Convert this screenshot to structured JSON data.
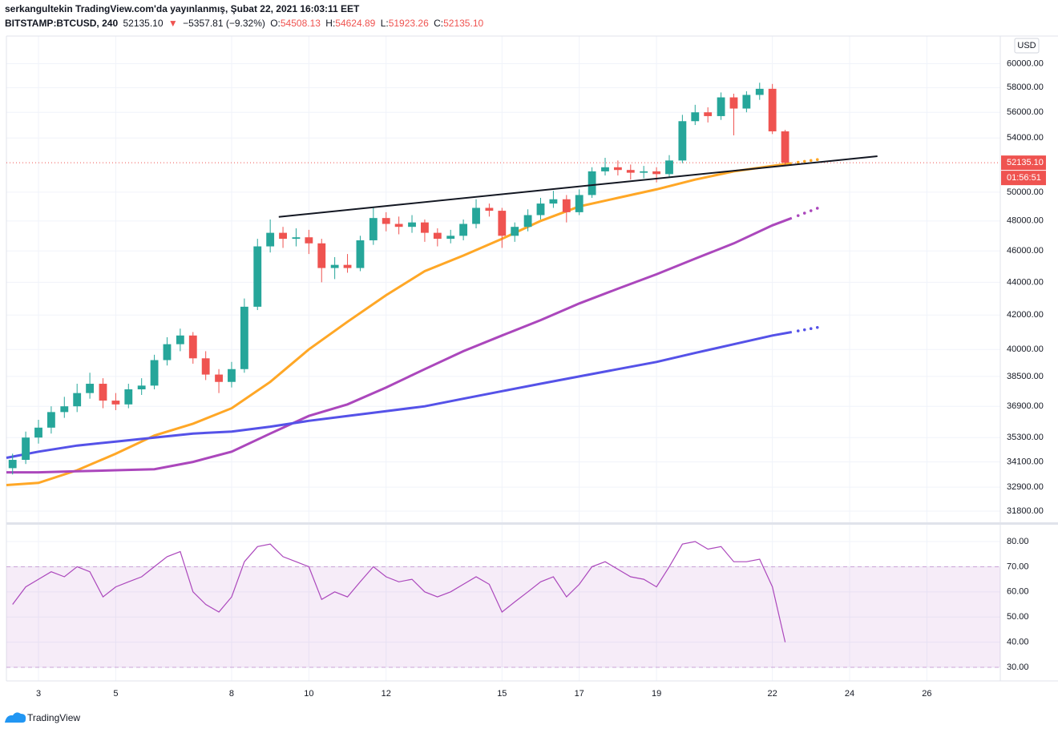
{
  "chart_data": {
    "type": "candlestick",
    "header": {
      "author_line": "serkangultekin TradingView.com'da yayınlanmış, Şubat 22, 2021 16:03:11 EET",
      "symbol": "BITSTAMP:BTCUSD, 240",
      "last": "52135.10",
      "arrow": "▼",
      "change": "−5357.81 (−9.32%)",
      "o_label": "O:",
      "o": "54508.13",
      "h_label": "H:",
      "h": "54624.89",
      "l_label": "L:",
      "l": "51923.26",
      "c_label": "C:",
      "c": "52135.10"
    },
    "log_y": true,
    "grid": true,
    "ylim": [
      31300,
      62400
    ],
    "yticks": [
      {
        "value": 31800,
        "label": "31800.00"
      },
      {
        "value": 32900,
        "label": "32900.00"
      },
      {
        "value": 34100,
        "label": "34100.00"
      },
      {
        "value": 35300,
        "label": "35300.00"
      },
      {
        "value": 36900,
        "label": "36900.00"
      },
      {
        "value": 38500,
        "label": "38500.00"
      },
      {
        "value": 40000,
        "label": "40000.00"
      },
      {
        "value": 42000,
        "label": "42000.00"
      },
      {
        "value": 44000,
        "label": "44000.00"
      },
      {
        "value": 46000,
        "label": "46000.00"
      },
      {
        "value": 48000,
        "label": "48000.00"
      },
      {
        "value": 50000,
        "label": "50000.00"
      },
      {
        "value": 54000,
        "label": "54000.00"
      },
      {
        "value": 56000,
        "label": "56000.00"
      },
      {
        "value": 58000,
        "label": "58000.00"
      },
      {
        "value": 60000,
        "label": "60000.00"
      }
    ],
    "xlim": [
      2.17,
      27.9
    ],
    "xticks": [
      3,
      5,
      8,
      10,
      12,
      15,
      17,
      19,
      22,
      24,
      26
    ],
    "up_color": "#26a69a",
    "down_color": "#ef5350",
    "candles": {
      "x": [
        2.33,
        2.67,
        3,
        3.33,
        3.67,
        4,
        4.33,
        4.67,
        5,
        5.33,
        5.67,
        6,
        6.33,
        6.67,
        7,
        7.33,
        7.67,
        8,
        8.33,
        8.67,
        9,
        9.33,
        9.67,
        10,
        10.33,
        10.67,
        11,
        11.33,
        11.67,
        12,
        12.33,
        12.67,
        13,
        13.33,
        13.67,
        14,
        14.33,
        14.67,
        15,
        15.33,
        15.67,
        16,
        16.33,
        16.67,
        17,
        17.33,
        17.67,
        18,
        18.33,
        18.67,
        19,
        19.33,
        19.67,
        20,
        20.33,
        20.67,
        21,
        21.33,
        21.67,
        22,
        22.33
      ],
      "open": [
        33800,
        34200,
        35300,
        35800,
        36600,
        36900,
        37600,
        38100,
        37200,
        37000,
        37800,
        38000,
        39400,
        40300,
        40800,
        39500,
        38600,
        38200,
        38900,
        42500,
        46300,
        47200,
        46800,
        46900,
        46500,
        44900,
        45100,
        44900,
        46700,
        48200,
        47800,
        47600,
        47900,
        47200,
        46800,
        47000,
        47800,
        48900,
        48700,
        47000,
        47600,
        48400,
        49200,
        49500,
        48600,
        49800,
        51500,
        51800,
        51600,
        51400,
        51500,
        51300,
        52300,
        55300,
        56000,
        55700,
        57200,
        56300,
        57400,
        57900,
        54508.13
      ],
      "high": [
        34500,
        35600,
        36200,
        36900,
        37400,
        38100,
        38700,
        38400,
        37600,
        38100,
        38400,
        39700,
        40700,
        41200,
        41000,
        39900,
        38900,
        39300,
        43000,
        46800,
        48100,
        47600,
        47500,
        47400,
        46800,
        45600,
        45800,
        47000,
        48900,
        48600,
        48300,
        48400,
        48100,
        47500,
        47400,
        48100,
        49500,
        49200,
        48900,
        47900,
        48800,
        49600,
        50100,
        49800,
        50200,
        51800,
        52500,
        52300,
        52000,
        51900,
        51800,
        52700,
        55800,
        56600,
        56400,
        57600,
        57500,
        57700,
        58400,
        58300,
        54624.89
      ],
      "low": [
        33500,
        34000,
        35000,
        35500,
        36300,
        36600,
        37300,
        36800,
        36700,
        36800,
        37500,
        37800,
        39100,
        39900,
        39200,
        38300,
        37600,
        37900,
        38700,
        42300,
        45900,
        46200,
        46300,
        45800,
        44000,
        44200,
        44600,
        44700,
        46400,
        47300,
        47100,
        47200,
        46600,
        46300,
        46500,
        46700,
        47500,
        48300,
        46200,
        46600,
        47300,
        48100,
        48900,
        47900,
        48400,
        49600,
        51200,
        51200,
        50900,
        51000,
        50700,
        51100,
        52100,
        55000,
        55200,
        55400,
        54200,
        56000,
        57000,
        54300,
        51923.26
      ],
      "close": [
        34200,
        35300,
        35800,
        36600,
        36900,
        37600,
        38100,
        37200,
        37000,
        37800,
        38000,
        39400,
        40300,
        40800,
        39500,
        38600,
        38200,
        38900,
        42500,
        46300,
        47200,
        46800,
        46900,
        46500,
        44900,
        45100,
        44900,
        46700,
        48200,
        47800,
        47600,
        47900,
        47200,
        46800,
        47000,
        47800,
        48900,
        48700,
        47000,
        47600,
        48400,
        49200,
        49500,
        48600,
        49800,
        51500,
        51800,
        51600,
        51400,
        51500,
        51300,
        52300,
        55300,
        56000,
        55700,
        57200,
        56300,
        57400,
        57900,
        54508.13,
        52135.1
      ]
    },
    "overlays": [
      {
        "color": "#ffa726",
        "x": [
          2.17,
          3,
          4,
          5,
          6,
          7,
          8,
          9,
          10,
          11,
          12,
          13,
          14,
          15,
          16,
          17,
          18,
          19,
          20,
          21,
          22,
          22.5
        ],
        "values": [
          33000,
          33100,
          33700,
          34500,
          35400,
          36000,
          36800,
          38200,
          40000,
          41600,
          43200,
          44700,
          45700,
          46800,
          48000,
          49000,
          49600,
          50200,
          50900,
          51500,
          51900,
          52100
        ]
      },
      {
        "color": "#ab47bc",
        "x": [
          2.17,
          3,
          4,
          5,
          6,
          7,
          8,
          9,
          10,
          11,
          12,
          13,
          14,
          15,
          16,
          17,
          18,
          19,
          20,
          21,
          22,
          22.5
        ],
        "values": [
          33600,
          33600,
          33650,
          33700,
          33750,
          34100,
          34600,
          35500,
          36400,
          37000,
          37900,
          38900,
          39900,
          40800,
          41700,
          42700,
          43600,
          44500,
          45500,
          46500,
          47700,
          48200
        ]
      },
      {
        "color": "#5552e8",
        "x": [
          2.17,
          3,
          4,
          5,
          6,
          7,
          8,
          9,
          10,
          11,
          12,
          13,
          14,
          15,
          16,
          17,
          18,
          19,
          20,
          21,
          22,
          22.5
        ],
        "values": [
          34300,
          34600,
          34900,
          35100,
          35300,
          35500,
          35600,
          35850,
          36150,
          36400,
          36650,
          36900,
          37300,
          37700,
          38100,
          38500,
          38900,
          39300,
          39800,
          40300,
          40800,
          41000
        ]
      }
    ],
    "trendline": {
      "color": "#131722",
      "x": [
        9.22,
        24.72
      ],
      "values": [
        48280,
        52620
      ]
    },
    "last_price": {
      "value": 52135.1,
      "label": "52135.10"
    },
    "countdown": "01:56:51",
    "currency": "USD",
    "indicator": {
      "type": "rsi",
      "color": "#ab47bc",
      "ylim": [
        24.6,
        86.7
      ],
      "yticks": [
        {
          "value": 30,
          "label": "30.00"
        },
        {
          "value": 40,
          "label": "40.00"
        },
        {
          "value": 50,
          "label": "50.00"
        },
        {
          "value": 60,
          "label": "60.00"
        },
        {
          "value": 70,
          "label": "70.00"
        },
        {
          "value": 80,
          "label": "80.00"
        }
      ],
      "band": [
        30,
        70
      ],
      "values": [
        55,
        62,
        65,
        68,
        66,
        70,
        68,
        58,
        62,
        64,
        66,
        70,
        74,
        76,
        60,
        55,
        52,
        58,
        72,
        78,
        79,
        74,
        72,
        70,
        57,
        60,
        58,
        64,
        70,
        66,
        64,
        65,
        60,
        58,
        60,
        63,
        66,
        63,
        52,
        56,
        60,
        64,
        66,
        58,
        63,
        70,
        72,
        69,
        66,
        65,
        62,
        70,
        79,
        80,
        77,
        78,
        72,
        72,
        73,
        62,
        40
      ]
    },
    "watermark": "TradingView"
  }
}
